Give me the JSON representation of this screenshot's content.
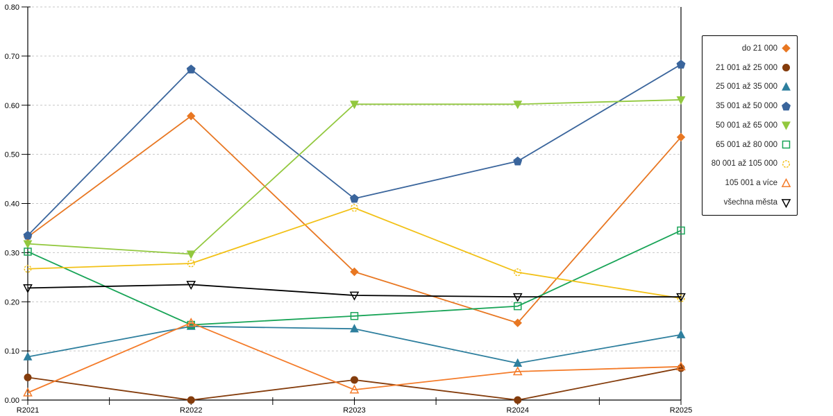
{
  "chart_data": {
    "type": "line",
    "title": "",
    "xlabel": "",
    "ylabel": "",
    "categories": [
      "R2021",
      "R2022",
      "R2023",
      "R2024",
      "R2025"
    ],
    "series": [
      {
        "name": "do 21 000",
        "color": "#E87722",
        "marker": "diamond",
        "fill": "filled",
        "values": [
          0.332,
          0.578,
          0.261,
          0.157,
          0.535
        ]
      },
      {
        "name": "21 001 až 25 000",
        "color": "#843C0C",
        "marker": "circle",
        "fill": "filled",
        "values": [
          0.046,
          0.0,
          0.041,
          0.0,
          0.065
        ]
      },
      {
        "name": "25 001 až 35 000",
        "color": "#2E7F9E",
        "marker": "triangle-up",
        "fill": "filled",
        "values": [
          0.088,
          0.15,
          0.145,
          0.075,
          0.133
        ]
      },
      {
        "name": "35 001 až 50 000",
        "color": "#3A659C",
        "marker": "pentagon",
        "fill": "filled",
        "values": [
          0.335,
          0.673,
          0.41,
          0.486,
          0.683
        ]
      },
      {
        "name": "50 001 až 65 000",
        "color": "#92C83E",
        "marker": "triangle-down",
        "fill": "filled",
        "values": [
          0.318,
          0.297,
          0.602,
          0.602,
          0.611
        ]
      },
      {
        "name": "65 001 až 80 000",
        "color": "#18A457",
        "marker": "square",
        "fill": "open",
        "values": [
          0.302,
          0.153,
          0.171,
          0.191,
          0.345
        ]
      },
      {
        "name": "80 001 až 105 000",
        "color": "#F2C117",
        "marker": "circle-dashed",
        "fill": "open",
        "values": [
          0.267,
          0.278,
          0.391,
          0.26,
          0.207
        ]
      },
      {
        "name": "105 001 a více",
        "color": "#F47B29",
        "marker": "triangle-up",
        "fill": "open",
        "values": [
          0.015,
          0.157,
          0.021,
          0.058,
          0.068
        ]
      },
      {
        "name": "všechna města",
        "color": "#000000",
        "marker": "triangle-down",
        "fill": "open",
        "values": [
          0.228,
          0.235,
          0.213,
          0.21,
          0.21
        ]
      }
    ],
    "ylim": [
      0,
      0.8
    ],
    "ytick_step": 0.1,
    "ytick_labels": [
      "0.00",
      "0.10",
      "0.20",
      "0.30",
      "0.40",
      "0.50",
      "0.60",
      "0.70",
      "0.80"
    ],
    "grid": "horizontal-dashed",
    "gridline_color": "#C6C6C6",
    "axis_color": "#000000",
    "legend_position": "right-box"
  }
}
